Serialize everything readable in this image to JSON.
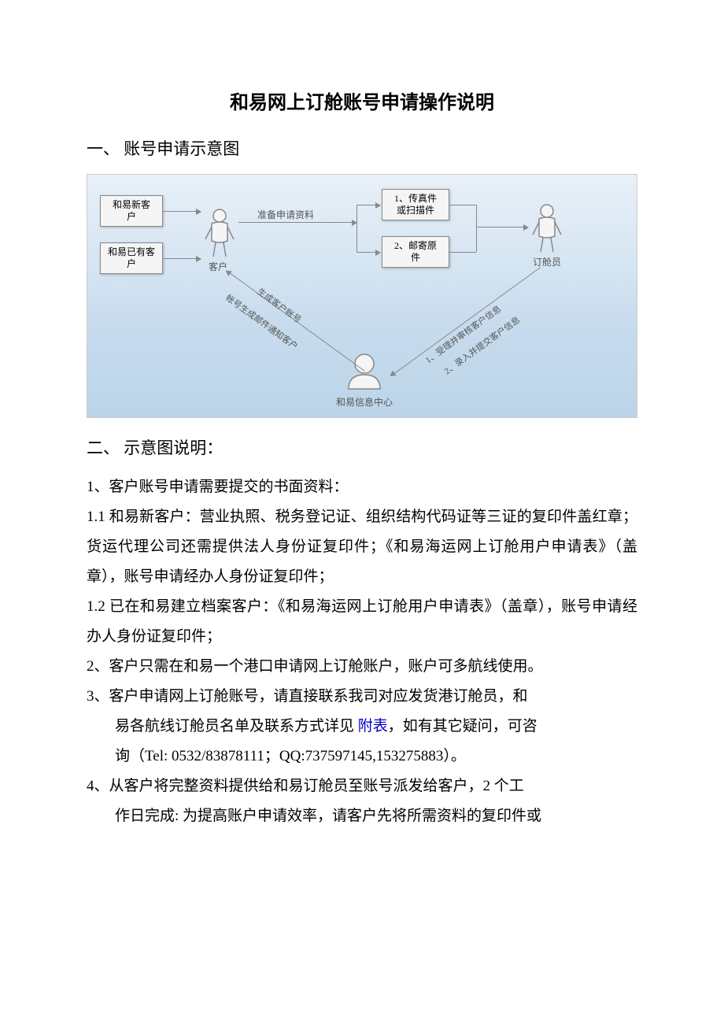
{
  "title": "和易网上订舱账号申请操作说明",
  "sections": {
    "one": "一、 账号申请示意图",
    "two": "二、 示意图说明："
  },
  "diagram": {
    "box_new_cust": "和易新客\n户",
    "box_exist_cust": "和易已有客\n户",
    "label_customer": "客户",
    "label_prepare": "准备申请资料",
    "box_fax": "1、传真件\n或扫描件",
    "box_mail": "2、邮寄原\n件",
    "label_booking": "订舱员",
    "label_center": "和易信息中心",
    "edge_left_up_a": "帐号生成邮件通知客户",
    "edge_left_up_b": "生成客户帐号",
    "edge_right_up_a": "1、受理并审核客户信息",
    "edge_right_up_b": "2、录入并提交客户信息"
  },
  "body": {
    "p1": "1、客户账号申请需要提交的书面资料：",
    "p2": "1.1 和易新客户：营业执照、税务登记证、组织结构代码证等三证的复印件盖红章；货运代理公司还需提供法人身份证复印件；《和易海运网上订舱用户申请表》（盖章），账号申请经办人身份证复印件；",
    "p3": "1.2 已在和易建立档案客户：《和易海运网上订舱用户申请表》（盖章），账号申请经办人身份证复印件；",
    "p4": "2、客户只需在和易一个港口申请网上订舱账户，账户可多航线使用。",
    "p5a": "3、客户申请网上订舱账号，请直接联系我司对应发货港订舱员，和",
    "p5b": "易各航线订舱员名单及联系方式详见 ",
    "p5_link": "附表",
    "p5c": "，如有其它疑问，可咨",
    "p5d": "询（Tel: 0532/83878111；QQ:737597145,153275883）。",
    "p6a": "4、从客户将完整资料提供给和易订舱员至账号派发给客户，2 个工",
    "p6b": "作日完成: 为提高账户申请效率，请客户先将所需资料的复印件或"
  }
}
